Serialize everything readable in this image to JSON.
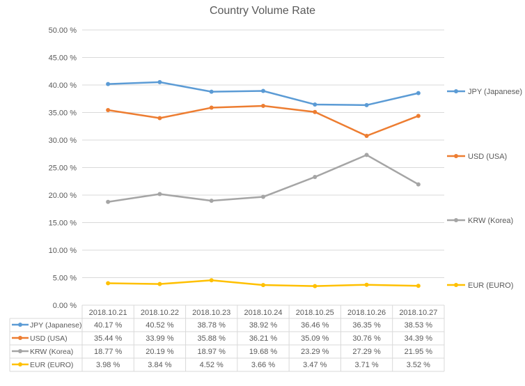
{
  "chart_data": {
    "type": "line",
    "title": "Country Volume Rate",
    "xlabel": "",
    "ylabel": "",
    "ylim": [
      0,
      50
    ],
    "y_ticks": [
      "0.00 %",
      "5.00 %",
      "10.00 %",
      "15.00 %",
      "20.00 %",
      "25.00 %",
      "30.00 %",
      "35.00 %",
      "40.00 %",
      "45.00 %",
      "50.00 %"
    ],
    "y_tick_values": [
      0,
      5,
      10,
      15,
      20,
      25,
      30,
      35,
      40,
      45,
      50
    ],
    "grid": true,
    "legend_position": "right",
    "categories": [
      "2018.10.21",
      "2018.10.22",
      "2018.10.23",
      "2018.10.24",
      "2018.10.25",
      "2018.10.26",
      "2018.10.27"
    ],
    "series": [
      {
        "name": "JPY (Japanese)",
        "color": "#5B9BD5",
        "values": [
          40.17,
          40.52,
          38.78,
          38.92,
          36.46,
          36.35,
          38.53
        ],
        "labels": [
          "40.17 %",
          "40.52 %",
          "38.78 %",
          "38.92 %",
          "36.46 %",
          "36.35 %",
          "38.53 %"
        ]
      },
      {
        "name": "USD (USA)",
        "color": "#ED7D31",
        "values": [
          35.44,
          33.99,
          35.88,
          36.21,
          35.09,
          30.76,
          34.39
        ],
        "labels": [
          "35.44 %",
          "33.99 %",
          "35.88 %",
          "36.21 %",
          "35.09 %",
          "30.76 %",
          "34.39 %"
        ]
      },
      {
        "name": "KRW (Korea)",
        "color": "#A5A5A5",
        "values": [
          18.77,
          20.19,
          18.97,
          19.68,
          23.29,
          27.29,
          21.95
        ],
        "labels": [
          "18.77 %",
          "20.19 %",
          "18.97 %",
          "19.68 %",
          "23.29 %",
          "27.29 %",
          "21.95 %"
        ]
      },
      {
        "name": "EUR (EURO)",
        "color": "#FFC000",
        "values": [
          3.98,
          3.84,
          4.52,
          3.66,
          3.47,
          3.71,
          3.52
        ],
        "labels": [
          "3.98 %",
          "3.84 %",
          "4.52 %",
          "3.66 %",
          "3.47 %",
          "3.71 %",
          "3.52 %"
        ]
      }
    ],
    "data_table": true
  }
}
